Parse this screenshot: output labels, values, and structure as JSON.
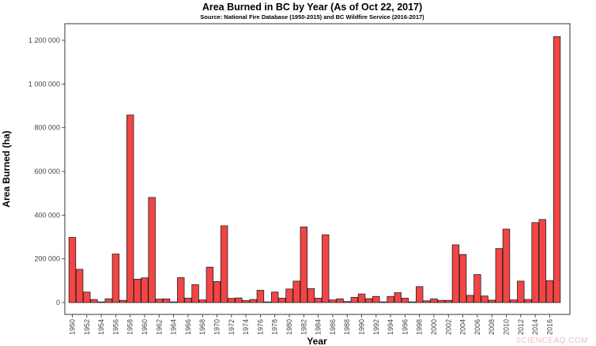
{
  "chart_data": {
    "type": "bar",
    "title": "Area Burned in BC by Year (As of Oct 22, 2017)",
    "subtitle": "Source: National Fire Database  (1950-2015) and BC Wildfire Service (2016-2017)",
    "xlabel": "Year",
    "ylabel": "Area Burned (ha)",
    "ylim": [
      -50000,
      1300000
    ],
    "yticks": [
      0,
      200000,
      400000,
      600000,
      800000,
      1000000,
      1200000
    ],
    "ytick_labels": [
      "0",
      "200 000",
      "400 000",
      "600 000",
      "800 000",
      "1 000 000",
      "1 200 000"
    ],
    "xtick_labels": [
      "1950",
      "1952",
      "1954",
      "1956",
      "1958",
      "1960",
      "1962",
      "1964",
      "1966",
      "1968",
      "1970",
      "1972",
      "1974",
      "1976",
      "1978",
      "1980",
      "1982",
      "1984",
      "1986",
      "1988",
      "1990",
      "1992",
      "1994",
      "1996",
      "1998",
      "2000",
      "2002",
      "2004",
      "2006",
      "2008",
      "2010",
      "2012",
      "2014",
      "2016"
    ],
    "categories": [
      1950,
      1951,
      1952,
      1953,
      1954,
      1955,
      1956,
      1957,
      1958,
      1959,
      1960,
      1961,
      1962,
      1963,
      1964,
      1965,
      1966,
      1967,
      1968,
      1969,
      1970,
      1971,
      1972,
      1973,
      1974,
      1975,
      1976,
      1977,
      1978,
      1979,
      1980,
      1981,
      1982,
      1983,
      1984,
      1985,
      1986,
      1987,
      1988,
      1989,
      1990,
      1991,
      1992,
      1993,
      1994,
      1995,
      1996,
      1997,
      1998,
      1999,
      2000,
      2001,
      2002,
      2003,
      2004,
      2005,
      2006,
      2007,
      2008,
      2009,
      2010,
      2011,
      2012,
      2013,
      2014,
      2015,
      2016,
      2017
    ],
    "values": [
      298000,
      152000,
      48000,
      14000,
      3000,
      17000,
      222000,
      10000,
      858000,
      107000,
      113000,
      481000,
      16000,
      17000,
      3000,
      114000,
      20000,
      82000,
      12000,
      162000,
      96000,
      351000,
      19000,
      21000,
      9000,
      14000,
      56000,
      3000,
      48000,
      20000,
      62000,
      98000,
      346000,
      64000,
      20000,
      310000,
      12000,
      17000,
      5000,
      24000,
      39000,
      18000,
      28000,
      3000,
      28000,
      45000,
      20000,
      3000,
      73000,
      8000,
      17000,
      10000,
      10000,
      264000,
      220000,
      33000,
      128000,
      30000,
      11000,
      247000,
      336000,
      12000,
      98000,
      14000,
      366000,
      380000,
      100000,
      1217000
    ],
    "grid": false,
    "legend": "none",
    "bar_color": "#f24545",
    "bar_edge_color": "#222222"
  },
  "watermark": "SCIENCEAQ.COM"
}
